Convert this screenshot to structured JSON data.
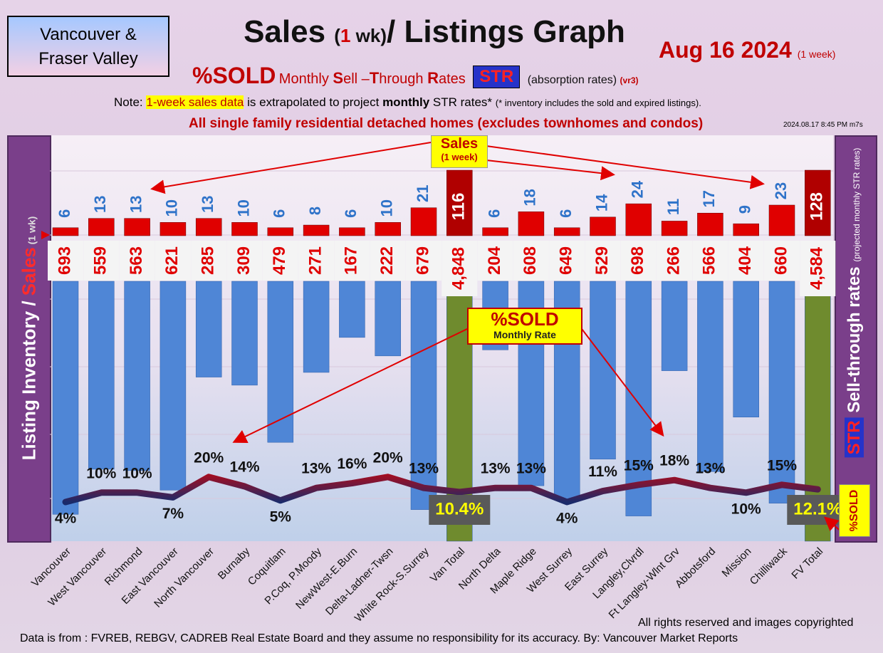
{
  "header": {
    "region_line1": "Vancouver &",
    "region_line2": "Fraser Valley",
    "title_a": "Sales ",
    "title_paren_open": "(",
    "title_one": "1",
    "title_wk": " wk)",
    "title_b": "/ Listings Graph",
    "date": "Aug 16  2024",
    "date_note": "(1 week)",
    "subtitle_sold": "%SOLD",
    "subtitle_monthly": "Monthly ",
    "subtitle_s": "S",
    "subtitle_ell": "ell –",
    "subtitle_t": "T",
    "subtitle_hrough": "hrough ",
    "subtitle_r": "R",
    "subtitle_ates": "ates",
    "subtitle_str": "STR",
    "subtitle_absorption": "(absorption rates)",
    "subtitle_version": "(vr3)",
    "note_prefix": "Note: ",
    "note_highlight": "1-week sales data",
    "note_mid": " is extrapolated to project ",
    "note_bold": "monthly",
    "note_rest": " STR rates* ",
    "note_small": "(* inventory includes the sold and expired listings).",
    "category_line": "All single family residential detached homes (excludes townhomes and condos)",
    "timestamp": "2024.08.17 8:45 PM m7s"
  },
  "side_labels": {
    "left_listing": "Listing Inventory / ",
    "left_sales": "Sales",
    "left_wk": " (1 wk)",
    "right_str": "STR",
    "right_text": " Sell-through rates ",
    "right_small": "(projected monthly STR rates)",
    "sold_side": "%SOLD"
  },
  "callouts": {
    "sales_a": "Sales",
    "sales_b": "(1 week)",
    "sold_a": "%SOLD",
    "sold_b": "Monthly Rate"
  },
  "footer": {
    "rights": "All rights reserved and  images copyrighted",
    "source": "Data is from : FVREB, REBGV, CADREB Real Estate Board and they assume no responsibility for its accuracy. By: Vancouver Market Reports"
  },
  "chart_data": {
    "type": "bar",
    "categories": [
      "Vancouver",
      "West Vancouver",
      "Richmond",
      "East Vancouver",
      "North Vancouver",
      "Burnaby",
      "Coquitlam",
      "P.Coq, P.Moody",
      "NewWest-E.Burn",
      "Delta-Ladner-Twsn",
      "White Rock-S.Surrey",
      "Van Total",
      "North Delta",
      "Maple Ridge",
      "West Surrey",
      "East Surrey",
      "Langley,Clvrdl",
      "Ft Langley-Wlnt Grv",
      "Abbotsford",
      "Mission",
      "Chilliwack",
      "FV Total"
    ],
    "series": [
      {
        "name": "Listing Inventory",
        "values": [
          693,
          559,
          563,
          621,
          285,
          309,
          479,
          271,
          167,
          222,
          679,
          4848,
          204,
          608,
          649,
          529,
          698,
          266,
          566,
          404,
          660,
          4584
        ],
        "labels": [
          "693",
          "559",
          "563",
          "621",
          "285",
          "309",
          "479",
          "271",
          "167",
          "222",
          "679",
          "4,848",
          "204",
          "608",
          "649",
          "529",
          "698",
          "266",
          "566",
          "404",
          "660",
          "4,584"
        ]
      },
      {
        "name": "Sales (1 wk)",
        "values": [
          6,
          13,
          13,
          10,
          13,
          10,
          6,
          8,
          6,
          10,
          21,
          116,
          6,
          18,
          6,
          14,
          24,
          11,
          17,
          9,
          23,
          128
        ]
      },
      {
        "name": "%SOLD Monthly Rate",
        "values": [
          4,
          10,
          10,
          7,
          20,
          14,
          5,
          13,
          16,
          20,
          13,
          10.4,
          13,
          13,
          4,
          11,
          15,
          18,
          13,
          10,
          15,
          12.1
        ],
        "labels": [
          "4%",
          "10%",
          "10%",
          "7%",
          "20%",
          "14%",
          "5%",
          "13%",
          "16%",
          "20%",
          "13%",
          "10.4%",
          "13%",
          "13%",
          "4%",
          "11%",
          "15%",
          "18%",
          "13%",
          "10%",
          "15%",
          "12.1%"
        ]
      }
    ],
    "totals": [
      "Van Total",
      "FV Total"
    ],
    "colors": {
      "inventory": "#4f86d6",
      "totals": "#6f8b2e",
      "sales": "#e00000",
      "sales_totals": "#b00000",
      "line_high": "#e00000",
      "line_low": "#1a2a6a"
    }
  }
}
